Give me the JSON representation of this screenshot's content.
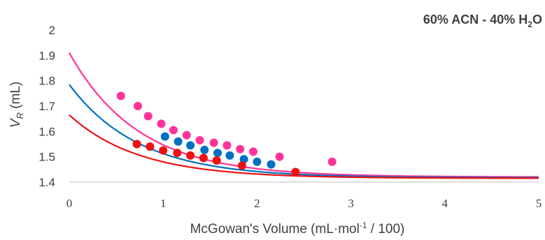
{
  "chart_data": {
    "type": "scatter",
    "title": {
      "prefix": "60% ACN - 40% H",
      "sub": "2",
      "suffix": "O"
    },
    "xlabel": {
      "prefix": "McGowan's Volume (mL·mol",
      "sup": "-1",
      "suffix": " / 100)"
    },
    "ylabel": {
      "main": "V",
      "sub": "R",
      "suffix": " (mL)"
    },
    "xlim": [
      0,
      5
    ],
    "ylim": [
      1.4,
      2.0
    ],
    "xticks": [
      "0",
      "1",
      "2",
      "3",
      "4",
      "5"
    ],
    "yticks": [
      "1.4",
      "1.5",
      "1.6",
      "1.7",
      "1.8",
      "1.9",
      "2"
    ],
    "grid": false,
    "legend": "none",
    "series": [
      {
        "color": "#ff3399",
        "points": [
          [
            0.55,
            1.74
          ],
          [
            0.73,
            1.7
          ],
          [
            0.84,
            1.66
          ],
          [
            0.98,
            1.63
          ],
          [
            1.11,
            1.605
          ],
          [
            1.25,
            1.585
          ],
          [
            1.39,
            1.565
          ],
          [
            1.54,
            1.555
          ],
          [
            1.68,
            1.545
          ],
          [
            1.82,
            1.53
          ],
          [
            1.96,
            1.52
          ],
          [
            2.24,
            1.5
          ],
          [
            2.8,
            1.48
          ]
        ],
        "fit": {
          "type": "exp",
          "asymptote": 1.42,
          "start": 1.91,
          "rate": 1.35
        }
      },
      {
        "color": "#0070c0",
        "points": [
          [
            1.02,
            1.58
          ],
          [
            1.16,
            1.56
          ],
          [
            1.29,
            1.545
          ],
          [
            1.44,
            1.527
          ],
          [
            1.58,
            1.515
          ],
          [
            1.71,
            1.505
          ],
          [
            1.86,
            1.49
          ],
          [
            2.0,
            1.48
          ],
          [
            2.15,
            1.47
          ]
        ],
        "fit": {
          "type": "exp",
          "asymptote": 1.417,
          "start": 1.785,
          "rate": 1.35
        }
      },
      {
        "color": "#ee1111",
        "points": [
          [
            0.72,
            1.55
          ],
          [
            0.86,
            1.54
          ],
          [
            1.0,
            1.525
          ],
          [
            1.15,
            1.515
          ],
          [
            1.29,
            1.505
          ],
          [
            1.43,
            1.495
          ],
          [
            1.57,
            1.485
          ],
          [
            1.84,
            1.465
          ],
          [
            2.41,
            1.44
          ]
        ],
        "fit": {
          "type": "exp",
          "asymptote": 1.415,
          "start": 1.665,
          "rate": 1.35
        }
      }
    ]
  }
}
